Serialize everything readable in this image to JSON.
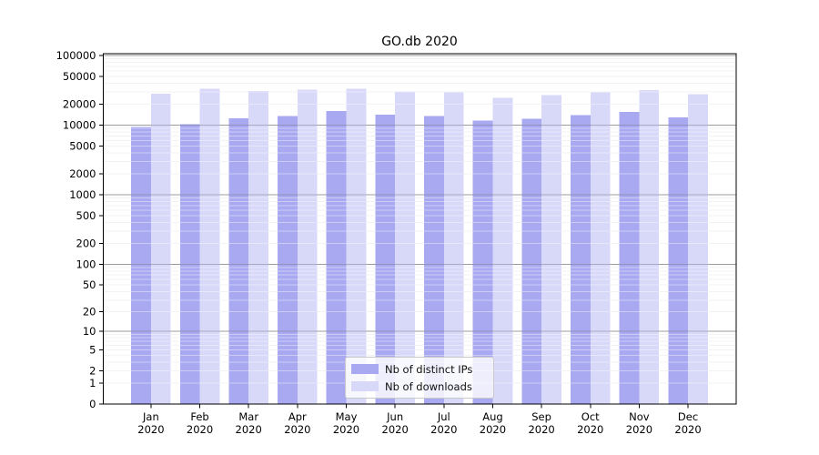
{
  "figure": {
    "background": "#ffffff"
  },
  "chart_data": {
    "type": "bar",
    "title": "GO.db 2020",
    "year": "2020",
    "categories": [
      "Jan",
      "Feb",
      "Mar",
      "Apr",
      "May",
      "Jun",
      "Jul",
      "Aug",
      "Sep",
      "Oct",
      "Nov",
      "Dec"
    ],
    "series": [
      {
        "name": "Nb of distinct IPs",
        "key": "distinct-ips",
        "color": "#a9a9f1",
        "values": [
          9500,
          10300,
          12600,
          13500,
          16000,
          14200,
          13500,
          11600,
          12300,
          13900,
          15400,
          13000
        ]
      },
      {
        "name": "Nb of downloads",
        "key": "downloads",
        "color": "#d8d8f8",
        "values": [
          28100,
          33200,
          31000,
          32300,
          33200,
          30700,
          29500,
          24600,
          27200,
          29500,
          31700,
          27700
        ]
      }
    ],
    "xlabel": "",
    "ylabel": "",
    "yscale": "log10(1+x)",
    "ylim": [
      0,
      100000
    ],
    "y_tick_values": [
      0,
      1,
      2,
      5,
      10,
      20,
      50,
      100,
      200,
      500,
      1000,
      2000,
      5000,
      10000,
      20000,
      50000,
      100000
    ],
    "y_tick_labels": [
      "0",
      "1",
      "2",
      "5",
      "10",
      "20",
      "50",
      "100",
      "200",
      "500",
      "1000",
      "2000",
      "5000",
      "10000",
      "20000",
      "50000",
      "100000"
    ],
    "grid": {
      "on": true,
      "major_color": "#bdbdbd",
      "minor_color": "#ececec"
    },
    "legend_position": "lower-center",
    "frame_color": "#000000"
  }
}
